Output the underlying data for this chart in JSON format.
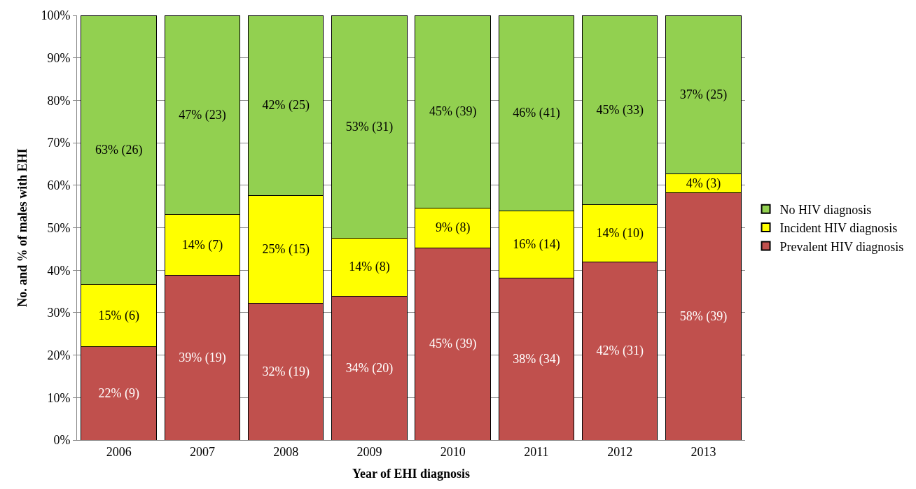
{
  "chart_data": {
    "type": "bar",
    "stacked": true,
    "xlabel": "Year of EHI diagnosis",
    "ylabel": "No. and % of males with EHI",
    "categories": [
      "2006",
      "2007",
      "2008",
      "2009",
      "2010",
      "2011",
      "2012",
      "2013"
    ],
    "series": [
      {
        "name": "Prevalent HIV diagnosis",
        "color": "#c0504d",
        "values": [
          22.0,
          38.8,
          32.2,
          33.9,
          45.3,
          38.2,
          41.9,
          58.2
        ],
        "value_labels": [
          "22% (9)",
          "39% (19)",
          "32% (19)",
          "34% (20)",
          "45% (39)",
          "38% (34)",
          "42% (31)",
          "58% (39)"
        ]
      },
      {
        "name": "Incident HIV diagnosis",
        "color": "#ffff00",
        "values": [
          14.6,
          14.3,
          25.4,
          13.6,
          9.3,
          15.7,
          13.5,
          4.5
        ],
        "value_labels": [
          "15% (6)",
          "14% (7)",
          "25% (15)",
          "14% (8)",
          "9% (8)",
          "16% (14)",
          "14% (10)",
          "4% (3)"
        ]
      },
      {
        "name": "No HIV diagnosis",
        "color": "#92d050",
        "values": [
          63.4,
          46.9,
          42.4,
          52.5,
          45.4,
          46.1,
          44.6,
          37.3
        ],
        "value_labels": [
          "63% (26)",
          "47% (23)",
          "42% (25)",
          "53% (31)",
          "45% (39)",
          "46% (41)",
          "45% (33)",
          "37% (25)"
        ]
      }
    ],
    "ylim": [
      0,
      100
    ],
    "yticks": [
      {
        "value": 0,
        "label": "0%"
      },
      {
        "value": 10,
        "label": "10%"
      },
      {
        "value": 20,
        "label": "20%"
      },
      {
        "value": 30,
        "label": "30%"
      },
      {
        "value": 40,
        "label": "40%"
      },
      {
        "value": 50,
        "label": "50%"
      },
      {
        "value": 60,
        "label": "60%"
      },
      {
        "value": 70,
        "label": "70%"
      },
      {
        "value": 80,
        "label": "80%"
      },
      {
        "value": 90,
        "label": "90%"
      },
      {
        "value": 100,
        "label": "100%"
      }
    ],
    "grid": "y",
    "legend": "right"
  }
}
